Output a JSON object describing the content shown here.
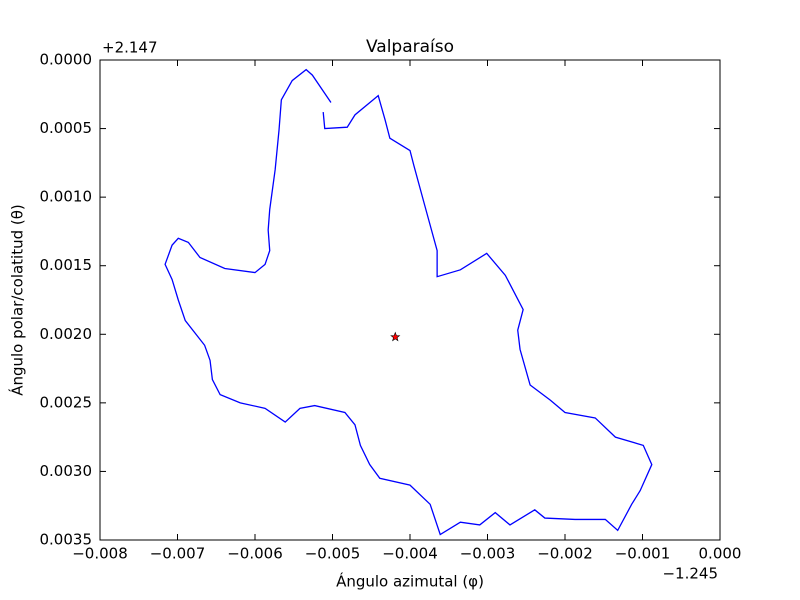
{
  "chart_data": {
    "type": "line",
    "title": "Valparaíso",
    "xlabel": "Ángulo azimutal (φ)",
    "ylabel": "Ángulo polar/colatitud (θ)",
    "x_offset_label": "−1.245",
    "y_offset_label": "+2.147",
    "xlim": [
      -0.008,
      0
    ],
    "ylim": [
      0.0035,
      0
    ],
    "xticks": [
      {
        "value": -0.008,
        "label": "−0.008"
      },
      {
        "value": -0.007,
        "label": "−0.007"
      },
      {
        "value": -0.006,
        "label": "−0.006"
      },
      {
        "value": -0.005,
        "label": "−0.005"
      },
      {
        "value": -0.004,
        "label": "−0.004"
      },
      {
        "value": -0.003,
        "label": "−0.003"
      },
      {
        "value": -0.002,
        "label": "−0.002"
      },
      {
        "value": -0.001,
        "label": "−0.001"
      },
      {
        "value": 0,
        "label": "0.000"
      }
    ],
    "yticks": [
      {
        "value": 0,
        "label": "0.0000"
      },
      {
        "value": 0.0005,
        "label": "0.0005"
      },
      {
        "value": 0.001,
        "label": "0.0010"
      },
      {
        "value": 0.0015,
        "label": "0.0015"
      },
      {
        "value": 0.002,
        "label": "0.0020"
      },
      {
        "value": 0.0025,
        "label": "0.0025"
      },
      {
        "value": 0.003,
        "label": "0.0030"
      },
      {
        "value": 0.0035,
        "label": "0.0035"
      }
    ],
    "series": [
      {
        "type": "line",
        "color": "#0000ff",
        "x": [
          -0.00502,
          -0.00526,
          -0.00534,
          -0.00552,
          -0.00566,
          -0.00569,
          -0.00574,
          -0.00581,
          -0.00583,
          -0.00581,
          -0.00587,
          -0.006,
          -0.00639,
          -0.00671,
          -0.00686,
          -0.00699,
          -0.00707,
          -0.00716,
          -0.00707,
          -0.00699,
          -0.0069,
          -0.00665,
          -0.00658,
          -0.00655,
          -0.00645,
          -0.00619,
          -0.00587,
          -0.00561,
          -0.00542,
          -0.00523,
          -0.00484,
          -0.00471,
          -0.00464,
          -0.00452,
          -0.00439,
          -0.004,
          -0.00374,
          -0.00361,
          -0.00335,
          -0.0031,
          -0.0029,
          -0.00271,
          -0.00239,
          -0.00226,
          -0.00187,
          -0.00148,
          -0.00132,
          -0.00114,
          -0.00103,
          -0.00088,
          -0.00099,
          -0.00135,
          -0.00161,
          -0.002,
          -0.00219,
          -0.00245,
          -0.00258,
          -0.00261,
          -0.00254,
          -0.00277,
          -0.00301,
          -0.00335,
          -0.00365,
          -0.00365,
          -0.00381,
          -0.00395,
          -0.004,
          -0.00426,
          -0.00432,
          -0.00441,
          -0.00471,
          -0.00481,
          -0.0051,
          -0.00512
        ],
        "values": [
          0.00031,
          0.00011,
          7e-05,
          0.00015,
          0.00029,
          0.00051,
          0.0008,
          0.00109,
          0.00124,
          0.00139,
          0.00149,
          0.00155,
          0.00152,
          0.00144,
          0.00133,
          0.0013,
          0.00135,
          0.00149,
          0.0016,
          0.00175,
          0.0019,
          0.00208,
          0.00219,
          0.00233,
          0.00244,
          0.0025,
          0.00254,
          0.00264,
          0.00254,
          0.00252,
          0.00257,
          0.00266,
          0.00281,
          0.00295,
          0.00305,
          0.0031,
          0.00324,
          0.00346,
          0.00337,
          0.00339,
          0.0033,
          0.00339,
          0.00328,
          0.00334,
          0.00335,
          0.00335,
          0.00343,
          0.00324,
          0.00314,
          0.00295,
          0.00281,
          0.00275,
          0.00261,
          0.00257,
          0.00248,
          0.00237,
          0.00211,
          0.00197,
          0.00182,
          0.00157,
          0.00141,
          0.00153,
          0.00158,
          0.00139,
          0.00106,
          0.00077,
          0.00066,
          0.00057,
          0.00044,
          0.00026,
          0.0004,
          0.00049,
          0.0005,
          0.00038
        ]
      },
      {
        "type": "scatter",
        "marker": "star",
        "color": "#ff0000",
        "x": [
          -0.00419
        ],
        "values": [
          0.00202
        ]
      }
    ]
  }
}
